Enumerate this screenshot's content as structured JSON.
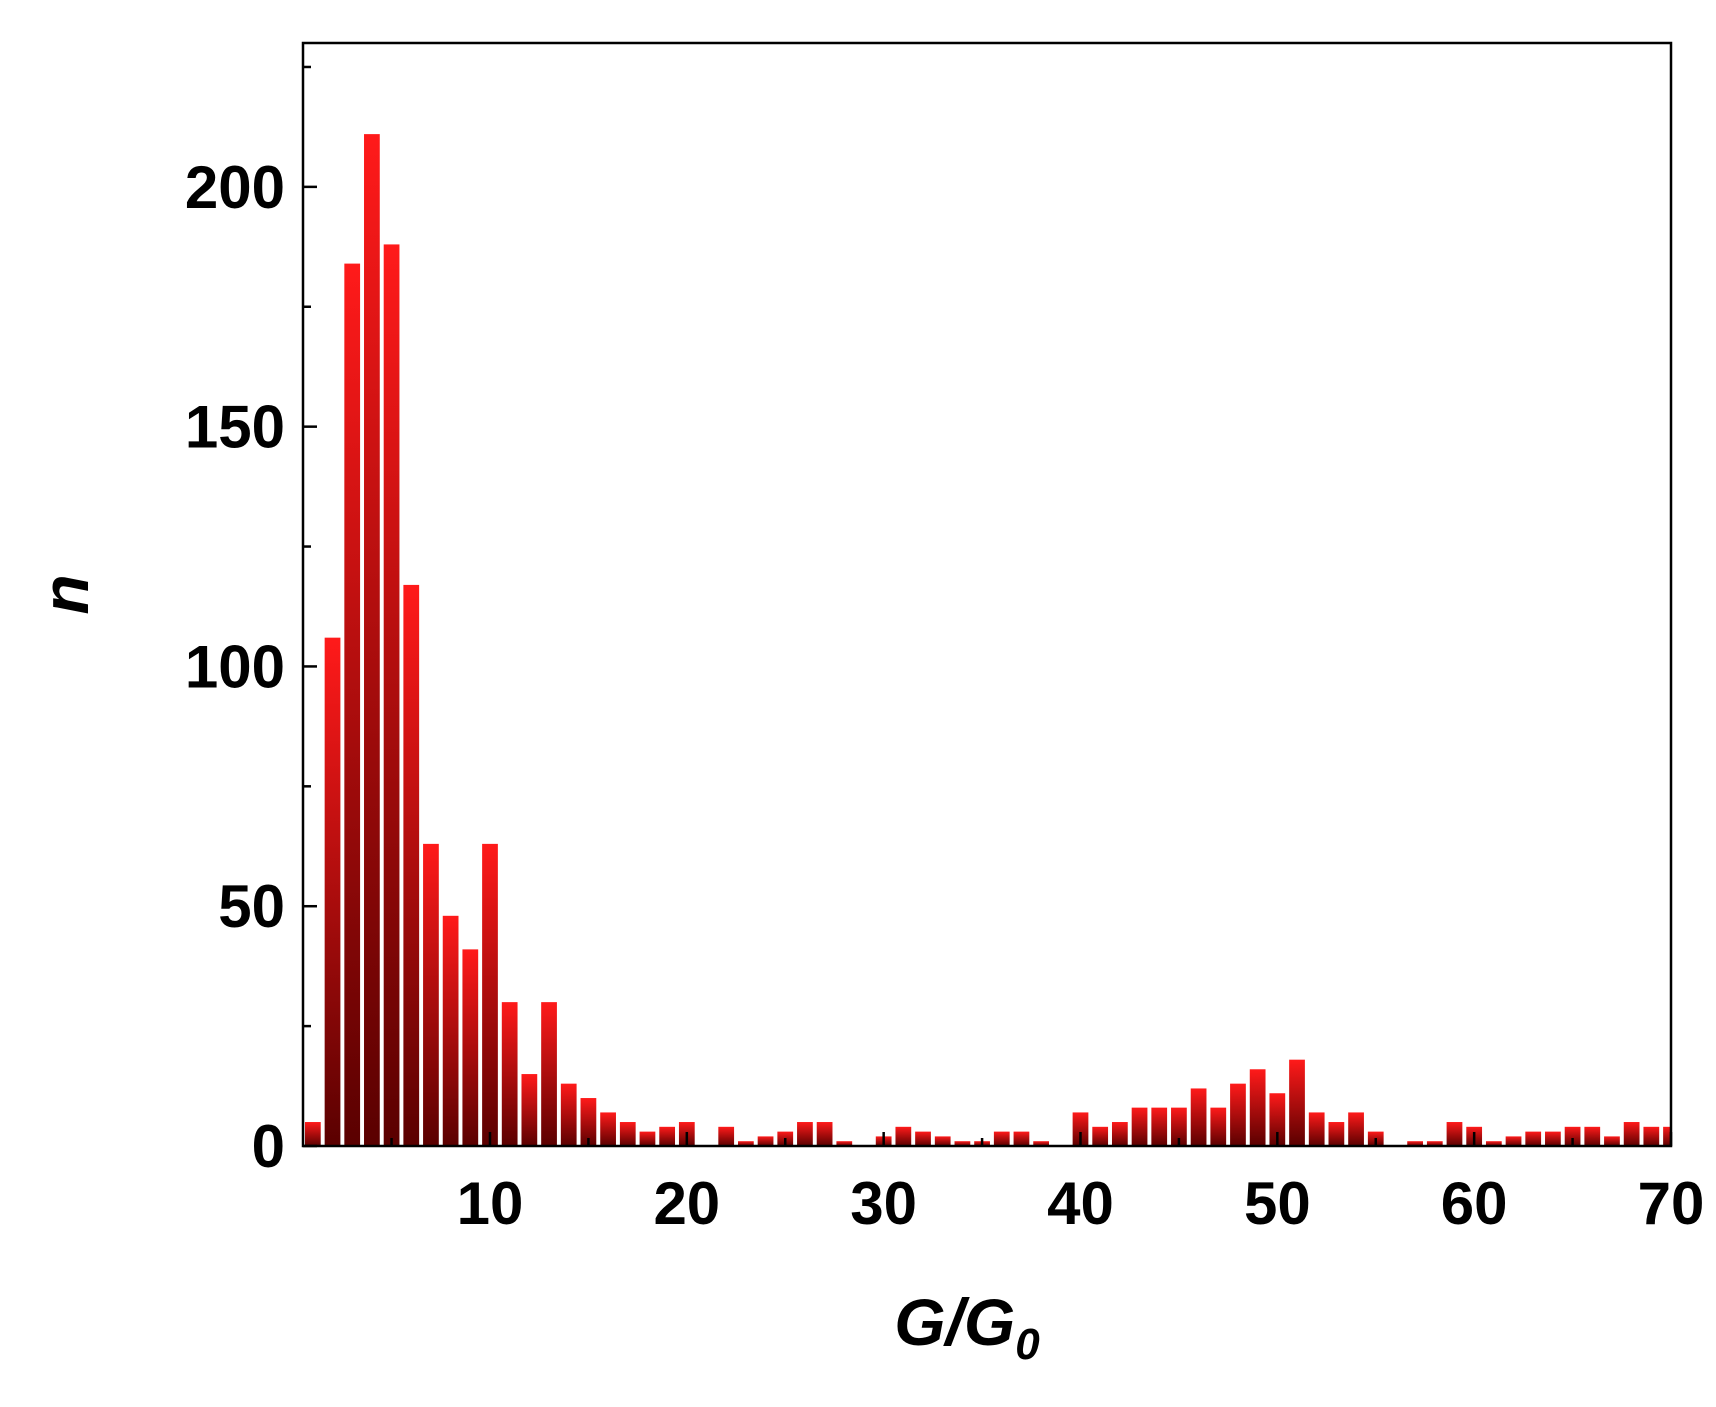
{
  "chart_data": {
    "type": "bar",
    "xlabel": "G/G",
    "xlabel_subscript": "0",
    "ylabel": "n",
    "xlim": [
      0.5,
      70
    ],
    "ylim": [
      0,
      230
    ],
    "x_ticks": [
      10,
      20,
      30,
      40,
      50,
      60,
      70
    ],
    "y_ticks": [
      0,
      50,
      100,
      150,
      200
    ],
    "bar_width": 0.8,
    "grid": false,
    "legend": "none",
    "bar_color_top": "#ff1a1a",
    "bar_color_bottom": "#5a0000",
    "x": [
      1,
      2,
      3,
      4,
      5,
      6,
      7,
      8,
      9,
      10,
      11,
      12,
      13,
      14,
      15,
      16,
      17,
      18,
      19,
      20,
      21,
      22,
      23,
      24,
      25,
      26,
      27,
      28,
      29,
      30,
      31,
      32,
      33,
      34,
      35,
      36,
      37,
      38,
      39,
      40,
      41,
      42,
      43,
      44,
      45,
      46,
      47,
      48,
      49,
      50,
      51,
      52,
      53,
      54,
      55,
      56,
      57,
      58,
      59,
      60,
      61,
      62,
      63,
      64,
      65,
      66,
      67,
      68,
      69,
      70
    ],
    "values": [
      5,
      106,
      184,
      211,
      188,
      117,
      63,
      48,
      41,
      63,
      30,
      15,
      30,
      13,
      10,
      7,
      5,
      3,
      4,
      5,
      0,
      4,
      1,
      2,
      3,
      5,
      5,
      1,
      0,
      2,
      4,
      3,
      2,
      1,
      1,
      3,
      3,
      1,
      0,
      7,
      4,
      5,
      8,
      8,
      8,
      12,
      8,
      13,
      16,
      11,
      18,
      7,
      5,
      7,
      3,
      0,
      1,
      1,
      5,
      4,
      1,
      2,
      3,
      3,
      4,
      4,
      2,
      5,
      4,
      4
    ]
  }
}
